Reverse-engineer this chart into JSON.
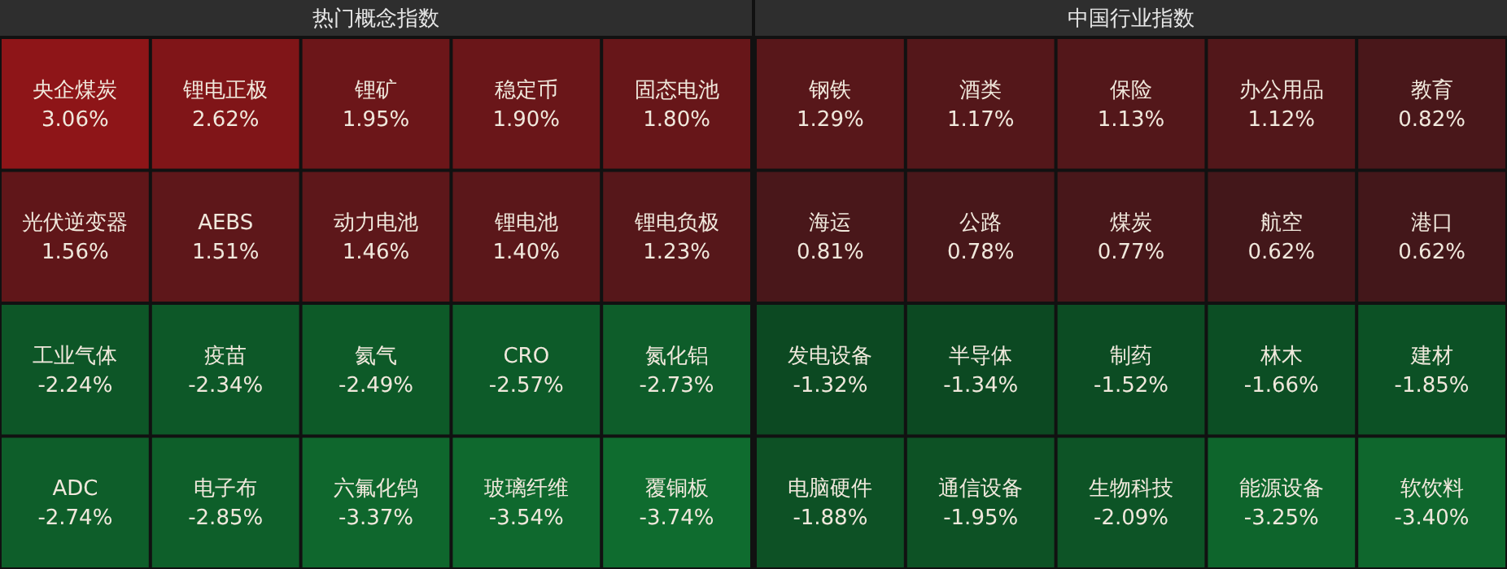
{
  "chart_data": [
    {
      "type": "other",
      "title": "热门概念指数",
      "categories": [
        "央企煤炭",
        "锂电正极",
        "锂矿",
        "稳定币",
        "固态电池",
        "光伏逆变器",
        "AEBS",
        "动力电池",
        "锂电池",
        "锂电负极",
        "工业气体",
        "疫苗",
        "氦气",
        "CRO",
        "氮化铝",
        "ADC",
        "电子布",
        "六氟化钨",
        "玻璃纤维",
        "覆铜板"
      ],
      "values": [
        3.06,
        2.62,
        1.95,
        1.9,
        1.8,
        1.56,
        1.51,
        1.46,
        1.4,
        1.23,
        -2.24,
        -2.34,
        -2.49,
        -2.57,
        -2.73,
        -2.74,
        -2.85,
        -3.37,
        -3.54,
        -3.74
      ],
      "value_labels": [
        "3.06%",
        "2.62%",
        "1.95%",
        "1.90%",
        "1.80%",
        "1.56%",
        "1.51%",
        "1.46%",
        "1.40%",
        "1.23%",
        "-2.24%",
        "-2.34%",
        "-2.49%",
        "-2.57%",
        "-2.73%",
        "-2.74%",
        "-2.85%",
        "-3.37%",
        "-3.54%",
        "-3.74%"
      ]
    },
    {
      "type": "other",
      "title": "中国行业指数",
      "categories": [
        "钢铁",
        "酒类",
        "保险",
        "办公用品",
        "教育",
        "海运",
        "公路",
        "煤炭",
        "航空",
        "港口",
        "发电设备",
        "半导体",
        "制药",
        "林木",
        "建材",
        "电脑硬件",
        "通信设备",
        "生物科技",
        "能源设备",
        "软饮料"
      ],
      "values": [
        1.29,
        1.17,
        1.13,
        1.12,
        0.82,
        0.81,
        0.78,
        0.77,
        0.62,
        0.62,
        -1.32,
        -1.34,
        -1.52,
        -1.66,
        -1.85,
        -1.88,
        -1.95,
        -2.09,
        -3.25,
        -3.4
      ],
      "value_labels": [
        "1.29%",
        "1.17%",
        "1.13%",
        "1.12%",
        "0.82%",
        "0.81%",
        "0.78%",
        "0.77%",
        "0.62%",
        "0.62%",
        "-1.32%",
        "-1.34%",
        "-1.52%",
        "-1.66%",
        "-1.85%",
        "-1.88%",
        "-1.95%",
        "-2.09%",
        "-3.25%",
        "-3.40%"
      ]
    }
  ]
}
